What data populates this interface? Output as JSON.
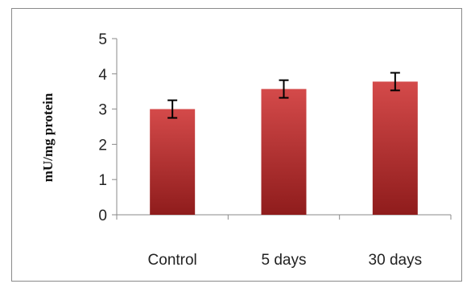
{
  "chart_data": {
    "type": "bar",
    "title": "",
    "xlabel": "",
    "ylabel": "mU/mg protein",
    "categories": [
      "Control",
      "5 days",
      "30 days"
    ],
    "values": [
      3.0,
      3.57,
      3.78
    ],
    "errors": [
      0.25,
      0.25,
      0.25
    ],
    "ylim": [
      0,
      5
    ],
    "yticks": [
      "0",
      "1",
      "2",
      "3",
      "4",
      "5"
    ],
    "grid": false,
    "legend": "none",
    "bar_color": "#c0282a",
    "bar_color_light": "#d44a4a",
    "bar_color_dark": "#8f1c1c",
    "error_bar_color": "#000000"
  }
}
